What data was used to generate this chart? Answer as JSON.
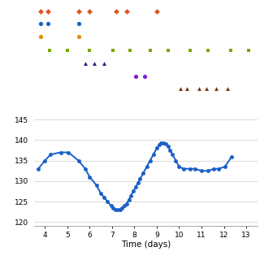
{
  "xlabel": "Time (days)",
  "xlim": [
    3.5,
    13.5
  ],
  "background_color": "#ffffff",
  "scatter_rows": {
    "red_diamonds": {
      "y": 7.2,
      "x": [
        3.8,
        4.15,
        5.5,
        6.0,
        7.2,
        7.65,
        9.0
      ],
      "color": "#e05520",
      "marker": "D",
      "size": 12
    },
    "blue_circles": {
      "y": 6.3,
      "x": [
        3.8,
        4.15,
        5.5
      ],
      "color": "#1a5fc8",
      "marker": "o",
      "size": 14
    },
    "orange_circles": {
      "y": 5.4,
      "x": [
        3.8,
        5.5
      ],
      "color": "#e09000",
      "marker": "o",
      "size": 14
    },
    "green_squares": {
      "y": 4.4,
      "x": [
        4.2,
        5.0,
        6.0,
        7.05,
        7.8,
        8.7,
        9.5,
        10.5,
        11.3,
        12.3,
        13.1
      ],
      "color": "#78a800",
      "marker": "s",
      "size": 12
    },
    "dark_triangles": {
      "y": 3.5,
      "x": [
        5.8,
        6.2,
        6.65
      ],
      "color": "#1a1a80",
      "marker": "^",
      "size": 12
    },
    "purple_circles": {
      "y": 2.6,
      "x": [
        8.05,
        8.45
      ],
      "color": "#8020c8",
      "marker": "o",
      "size": 14
    },
    "brown_triangles": {
      "y": 1.7,
      "x": [
        10.05,
        10.35,
        10.9,
        11.2,
        11.65,
        12.15
      ],
      "color": "#7a3010",
      "marker": "^",
      "size": 12
    }
  },
  "line_x": [
    3.7,
    4.0,
    4.25,
    4.7,
    5.05,
    5.5,
    5.8,
    6.0,
    6.3,
    6.5,
    6.65,
    6.8,
    6.95,
    7.05,
    7.15,
    7.25,
    7.35,
    7.45,
    7.55,
    7.65,
    7.75,
    7.85,
    7.95,
    8.05,
    8.15,
    8.25,
    8.4,
    8.55,
    8.7,
    8.85,
    9.0,
    9.1,
    9.2,
    9.3,
    9.4,
    9.5,
    9.6,
    9.7,
    9.85,
    10.0,
    10.2,
    10.5,
    10.7,
    11.0,
    11.3,
    11.55,
    11.75,
    12.05,
    12.35
  ],
  "line_y": [
    133,
    135,
    136.5,
    137,
    137,
    135,
    133,
    131,
    129,
    127,
    126,
    125,
    124,
    123.5,
    123,
    123,
    123,
    123.5,
    124,
    124.5,
    125.5,
    126.5,
    127.5,
    128.5,
    129.5,
    130.5,
    132,
    133.5,
    135,
    136.5,
    138,
    138.8,
    139.2,
    139.3,
    139,
    138.5,
    137.5,
    136.5,
    135,
    133.5,
    133,
    133,
    133,
    132.5,
    132.5,
    133,
    133,
    133.5,
    136
  ],
  "line_color": "#1a5fc8",
  "line_width": 1.4,
  "marker_size": 3.5,
  "yticks_bottom": [
    120,
    125,
    130,
    135,
    140,
    145
  ],
  "xticks": [
    4,
    5,
    6,
    7,
    8,
    9,
    10,
    11,
    12,
    13
  ]
}
